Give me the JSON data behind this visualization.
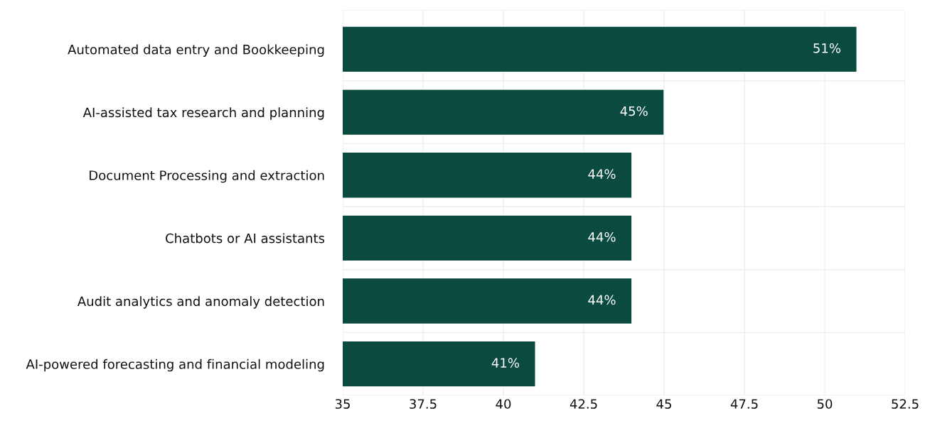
{
  "chart_data": {
    "type": "bar",
    "orientation": "horizontal",
    "categories": [
      "Automated data entry and Bookkeeping",
      "AI-assisted tax research and planning",
      "Document Processing and extraction",
      "Chatbots or AI assistants",
      "Audit analytics and anomaly detection",
      "AI-powered forecasting and financial modeling"
    ],
    "values": [
      51,
      45,
      44,
      44,
      44,
      41
    ],
    "value_labels": [
      "51%",
      "45%",
      "44%",
      "44%",
      "44%",
      "41%"
    ],
    "color": "#0b4a3e",
    "xlim": [
      35,
      52.5
    ],
    "xticks": [
      35,
      {
        "value": 37.5,
        "label": "37.5"
      },
      40,
      {
        "value": 42.5,
        "label": "42.5"
      },
      45,
      {
        "value": 47.5,
        "label": "47.5"
      },
      50,
      {
        "value": 52.5,
        "label": "52.5"
      }
    ],
    "grid": true
  }
}
